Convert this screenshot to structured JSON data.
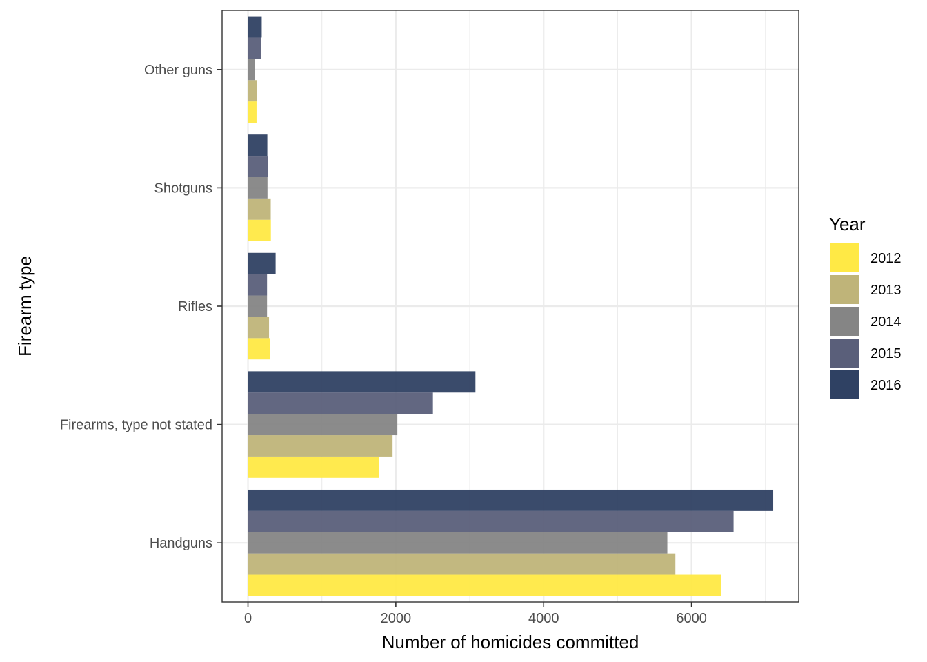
{
  "chart_data": {
    "type": "bar",
    "orientation": "horizontal",
    "categories": [
      "Handguns",
      "Firearms, type not stated",
      "Rifles",
      "Shotguns",
      "Other guns"
    ],
    "series": [
      {
        "name": "2012",
        "color": "#FFE945",
        "values": [
          6404,
          1769,
          298,
          310,
          116
        ]
      },
      {
        "name": "2013",
        "color": "#BFB479",
        "values": [
          5782,
          1956,
          285,
          308,
          123
        ]
      },
      {
        "name": "2014",
        "color": "#858585",
        "values": [
          5673,
          2021,
          258,
          264,
          93
        ]
      },
      {
        "name": "2015",
        "color": "#5A5F7A",
        "values": [
          6569,
          2502,
          258,
          272,
          177
        ]
      },
      {
        "name": "2016",
        "color": "#2F4163",
        "values": [
          7105,
          3077,
          374,
          262,
          186
        ]
      }
    ],
    "xlabel": "Number of homicides committed",
    "ylabel": "Firearm type",
    "xticks": [
      0,
      2000,
      4000,
      6000
    ],
    "xlim": [
      -350,
      7450
    ],
    "grid": true,
    "legend": {
      "title": "Year",
      "position": "right"
    }
  }
}
